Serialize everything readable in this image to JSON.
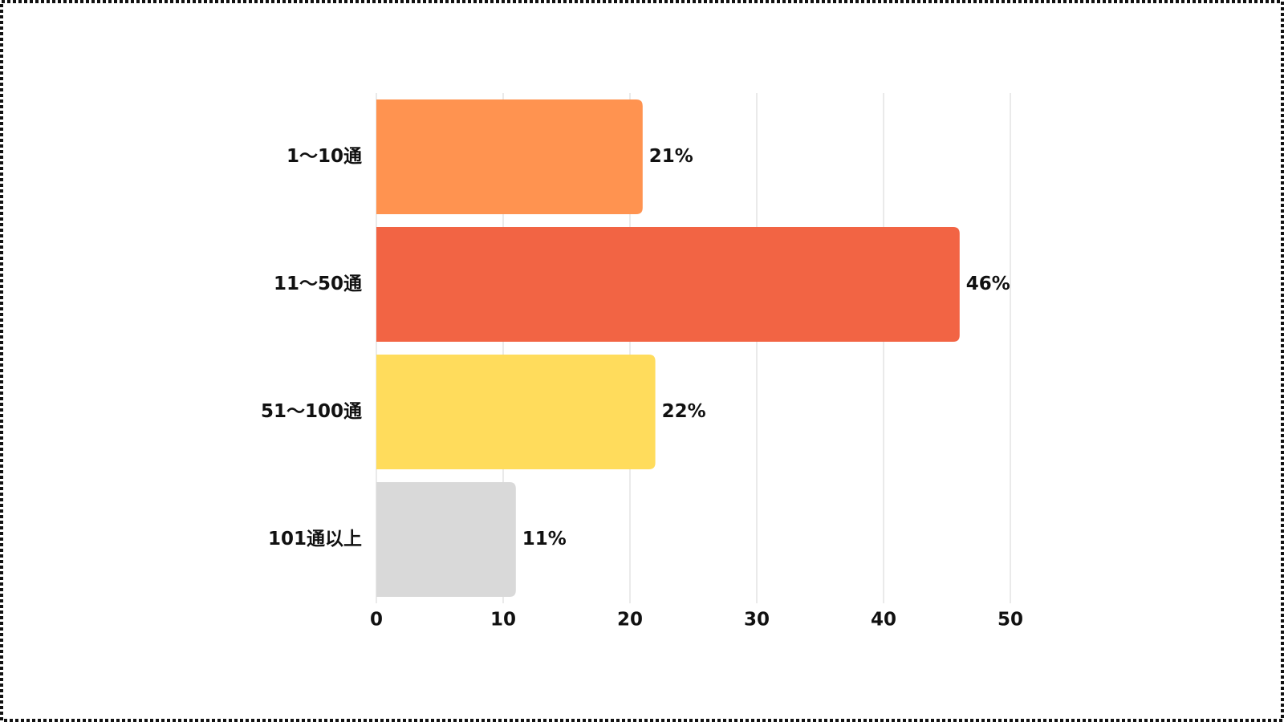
{
  "chart_data": {
    "type": "bar",
    "orientation": "horizontal",
    "categories": [
      "1〜10通",
      "11〜50通",
      "51〜100通",
      "101通以上"
    ],
    "values": [
      21,
      46,
      22,
      11
    ],
    "value_labels": [
      "21%",
      "46%",
      "22%",
      "11%"
    ],
    "colors": [
      "#ff9350",
      "#f26444",
      "#ffdc5c",
      "#d9d9d9"
    ],
    "xlim": [
      0,
      50
    ],
    "xticks": [
      0,
      10,
      20,
      30,
      40,
      50
    ],
    "grid": true
  }
}
